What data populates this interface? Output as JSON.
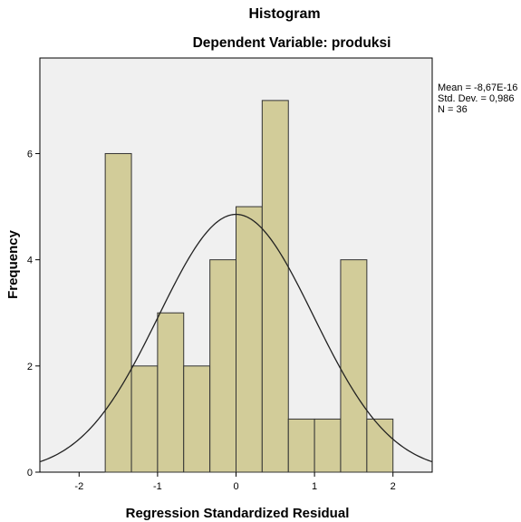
{
  "chart_data": {
    "type": "bar",
    "title": "Histogram",
    "subtitle": "Dependent Variable: produksi",
    "xlabel": "Regression Standardized Residual",
    "ylabel": "Frequency",
    "xlim": [
      -2.5,
      2.5
    ],
    "ylim": [
      0,
      7.8
    ],
    "x_ticks": [
      "-2",
      "-1",
      "0",
      "1",
      "2"
    ],
    "y_ticks": [
      "0",
      "2",
      "4",
      "6"
    ],
    "bins": [
      {
        "from": -1.667,
        "to": -1.333,
        "count": 6
      },
      {
        "from": -1.333,
        "to": -1.0,
        "count": 2
      },
      {
        "from": -1.0,
        "to": -0.667,
        "count": 3
      },
      {
        "from": -0.667,
        "to": -0.333,
        "count": 2
      },
      {
        "from": -0.333,
        "to": 0.0,
        "count": 4
      },
      {
        "from": 0.0,
        "to": 0.333,
        "count": 5
      },
      {
        "from": 0.333,
        "to": 0.667,
        "count": 7
      },
      {
        "from": 0.667,
        "to": 1.0,
        "count": 1
      },
      {
        "from": 1.0,
        "to": 1.333,
        "count": 1
      },
      {
        "from": 1.333,
        "to": 1.667,
        "count": 4
      },
      {
        "from": 1.667,
        "to": 2.0,
        "count": 1
      }
    ],
    "normal_curve": {
      "mean": -8.67e-16,
      "std_dev": 0.986,
      "n": 36,
      "bin_width": 0.3333
    },
    "stats": [
      "Mean = -8,67E-16",
      "Std. Dev. = 0,986",
      "N = 36"
    ],
    "colors": {
      "bar_fill": "#d2cc99",
      "bar_stroke": "#333333",
      "plot_bg": "#f0f0f0",
      "curve": "#222222"
    },
    "grid": false
  }
}
